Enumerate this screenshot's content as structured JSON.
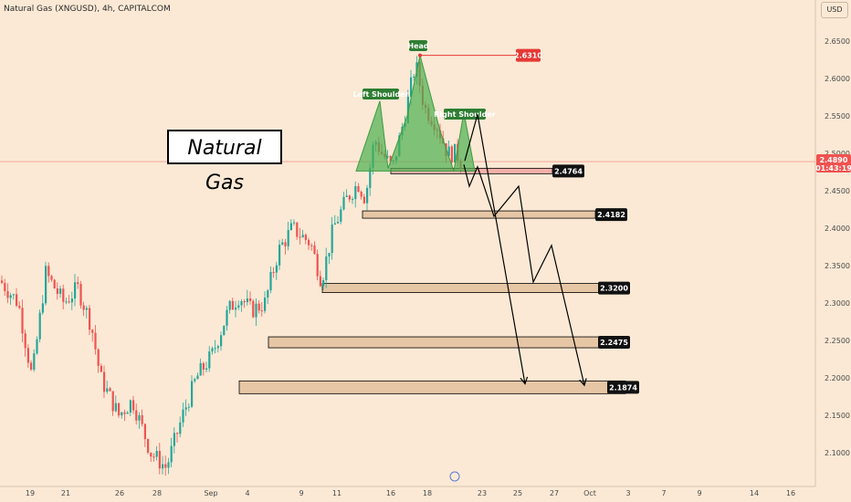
{
  "symbol": "Natural Gas (XNGUSD), 4h, CAPITALCOM",
  "currency": "USD",
  "chart_data": {
    "type": "candlestick",
    "title": "Natural Gas",
    "y_axis": {
      "ticks": [
        "2.6500",
        "2.6000",
        "2.5500",
        "2.5000",
        "2.4500",
        "2.4000",
        "2.3500",
        "2.3000",
        "2.2500",
        "2.2000",
        "2.1500",
        "2.1000"
      ],
      "range": [
        2.0843,
        2.6853
      ]
    },
    "x_axis": {
      "ticks": [
        "19",
        "21",
        "26",
        "28",
        "Sep",
        "4",
        "9",
        "11",
        "16",
        "18",
        "23",
        "25",
        "27",
        "Oct",
        "3",
        "7",
        "9",
        "14",
        "16"
      ]
    },
    "current_price": {
      "value": "2.4890",
      "countdown": "01:43:19"
    },
    "pattern": {
      "name": "Head and Shoulders",
      "labels": [
        "Left Shoulder",
        "Head",
        "Right Shoulder"
      ],
      "head_price": "2.6310"
    },
    "support_levels": [
      {
        "label": "2.4764",
        "value": 2.4764
      },
      {
        "label": "2.4182",
        "value": 2.4182
      },
      {
        "label": "2.3200",
        "value": 2.32
      },
      {
        "label": "2.2475",
        "value": 2.2475
      },
      {
        "label": "2.1874",
        "value": 2.1874
      }
    ],
    "colors": {
      "up": "#26a69a",
      "down": "#ef5350",
      "pattern": "#4caf50",
      "zone": "#e2c09c",
      "head_label": "#e53935"
    }
  }
}
